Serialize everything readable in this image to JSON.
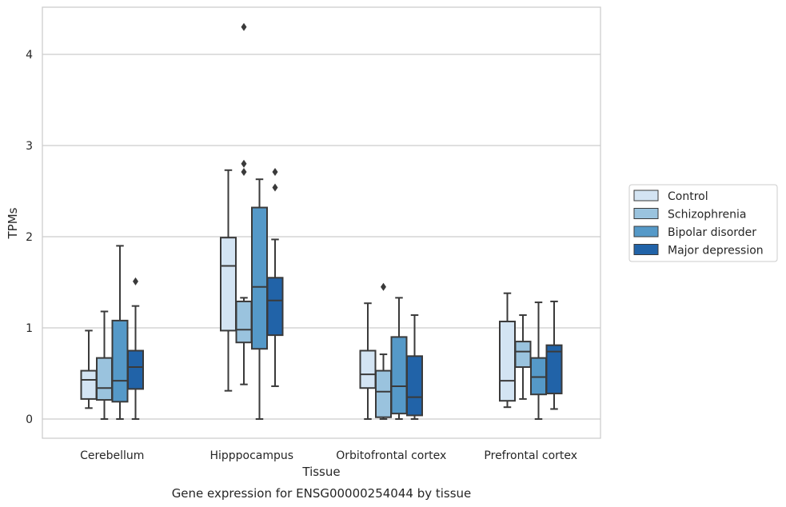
{
  "caption": "Gene expression for ENSG00000254044 by tissue",
  "chart_data": {
    "type": "box",
    "xlabel": "Tissue",
    "ylabel": "TPMs",
    "ylim": [
      -0.2,
      4.5
    ],
    "yticks": [
      0,
      1,
      2,
      3,
      4
    ],
    "grid": "horizontal",
    "legend_position": "right",
    "categories": [
      "Cerebellum",
      "Hipppocampus",
      "Orbitofrontal cortex",
      "Prefrontal cortex"
    ],
    "series": [
      {
        "name": "Control",
        "color": "#d3e4f3",
        "boxes": [
          {
            "whislo": 0.12,
            "q1": 0.22,
            "med": 0.43,
            "q3": 0.53,
            "whishi": 0.97,
            "fliers": []
          },
          {
            "whislo": 0.31,
            "q1": 0.97,
            "med": 1.68,
            "q3": 1.99,
            "whishi": 2.73,
            "fliers": []
          },
          {
            "whislo": 0.0,
            "q1": 0.34,
            "med": 0.49,
            "q3": 0.75,
            "whishi": 1.27,
            "fliers": []
          },
          {
            "whislo": 0.13,
            "q1": 0.2,
            "med": 0.42,
            "q3": 1.07,
            "whishi": 1.38,
            "fliers": []
          }
        ]
      },
      {
        "name": "Schizophrenia",
        "color": "#9ac3de",
        "boxes": [
          {
            "whislo": 0.0,
            "q1": 0.21,
            "med": 0.34,
            "q3": 0.67,
            "whishi": 1.18,
            "fliers": []
          },
          {
            "whislo": 0.38,
            "q1": 0.84,
            "med": 0.98,
            "q3": 1.29,
            "whishi": 1.33,
            "fliers": [
              2.71,
              2.8,
              4.3
            ]
          },
          {
            "whislo": 0.0,
            "q1": 0.02,
            "med": 0.3,
            "q3": 0.53,
            "whishi": 0.71,
            "fliers": [
              1.45
            ]
          },
          {
            "whislo": 0.22,
            "q1": 0.57,
            "med": 0.74,
            "q3": 0.85,
            "whishi": 1.14,
            "fliers": []
          }
        ]
      },
      {
        "name": "Bipolar disorder",
        "color": "#5599c8",
        "boxes": [
          {
            "whislo": 0.0,
            "q1": 0.19,
            "med": 0.42,
            "q3": 1.08,
            "whishi": 1.9,
            "fliers": []
          },
          {
            "whislo": 0.0,
            "q1": 0.77,
            "med": 1.45,
            "q3": 2.32,
            "whishi": 2.63,
            "fliers": []
          },
          {
            "whislo": 0.0,
            "q1": 0.06,
            "med": 0.36,
            "q3": 0.9,
            "whishi": 1.33,
            "fliers": []
          },
          {
            "whislo": 0.0,
            "q1": 0.27,
            "med": 0.46,
            "q3": 0.67,
            "whishi": 1.28,
            "fliers": []
          }
        ]
      },
      {
        "name": "Major depression",
        "color": "#2163a8",
        "boxes": [
          {
            "whislo": 0.0,
            "q1": 0.33,
            "med": 0.57,
            "q3": 0.75,
            "whishi": 1.24,
            "fliers": [
              1.51
            ]
          },
          {
            "whislo": 0.36,
            "q1": 0.92,
            "med": 1.3,
            "q3": 1.55,
            "whishi": 1.97,
            "fliers": [
              2.54,
              2.71
            ]
          },
          {
            "whislo": 0.0,
            "q1": 0.04,
            "med": 0.24,
            "q3": 0.69,
            "whishi": 1.14,
            "fliers": []
          },
          {
            "whislo": 0.11,
            "q1": 0.28,
            "med": 0.74,
            "q3": 0.81,
            "whishi": 1.29,
            "fliers": []
          }
        ]
      }
    ]
  }
}
